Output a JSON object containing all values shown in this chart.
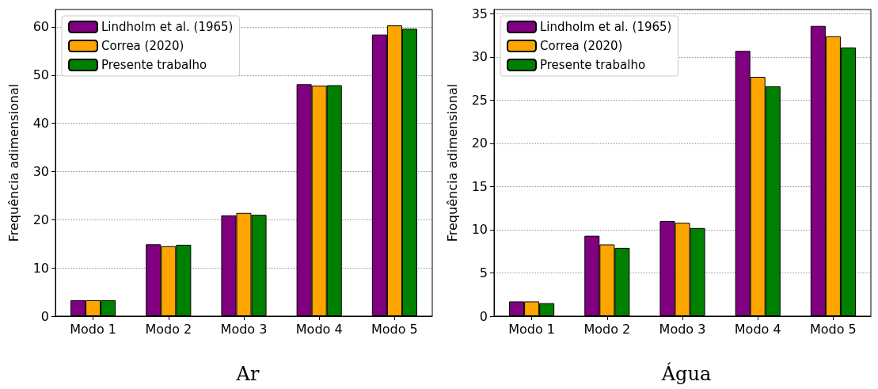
{
  "chart_data": [
    {
      "type": "bar",
      "title": "Ar",
      "ylabel": "Frequência adimensional",
      "categories": [
        "Modo 1",
        "Modo 2",
        "Modo 3",
        "Modo 4",
        "Modo 5"
      ],
      "series": [
        {
          "name": "Lindholm et al. (1965)",
          "color": "#800080",
          "values": [
            3.3,
            14.9,
            20.9,
            48.1,
            58.4
          ]
        },
        {
          "name": "Correa (2020)",
          "color": "#ffa500",
          "values": [
            3.3,
            14.5,
            21.4,
            47.8,
            60.3
          ]
        },
        {
          "name": "Presente trabalho",
          "color": "#008000",
          "values": [
            3.3,
            14.8,
            21.0,
            47.9,
            59.6
          ]
        }
      ],
      "ylim": [
        0,
        63.6
      ],
      "yticks": [
        0,
        10,
        20,
        30,
        40,
        50,
        60
      ],
      "grid": "y",
      "legend": "top left"
    },
    {
      "type": "bar",
      "title": "Água",
      "ylabel": "Frequência adimensional",
      "categories": [
        "Modo 1",
        "Modo 2",
        "Modo 3",
        "Modo 4",
        "Modo 5"
      ],
      "series": [
        {
          "name": "Lindholm et al. (1965)",
          "color": "#800080",
          "values": [
            1.7,
            9.3,
            11.0,
            30.7,
            33.6
          ]
        },
        {
          "name": "Correa (2020)",
          "color": "#ffa500",
          "values": [
            1.7,
            8.3,
            10.8,
            27.7,
            32.4
          ]
        },
        {
          "name": "Presente trabalho",
          "color": "#008000",
          "values": [
            1.5,
            7.9,
            10.2,
            26.6,
            31.1
          ]
        }
      ],
      "ylim": [
        0,
        35.5
      ],
      "yticks": [
        0,
        5,
        10,
        15,
        20,
        25,
        30,
        35
      ],
      "grid": "y",
      "legend": "top left"
    }
  ]
}
